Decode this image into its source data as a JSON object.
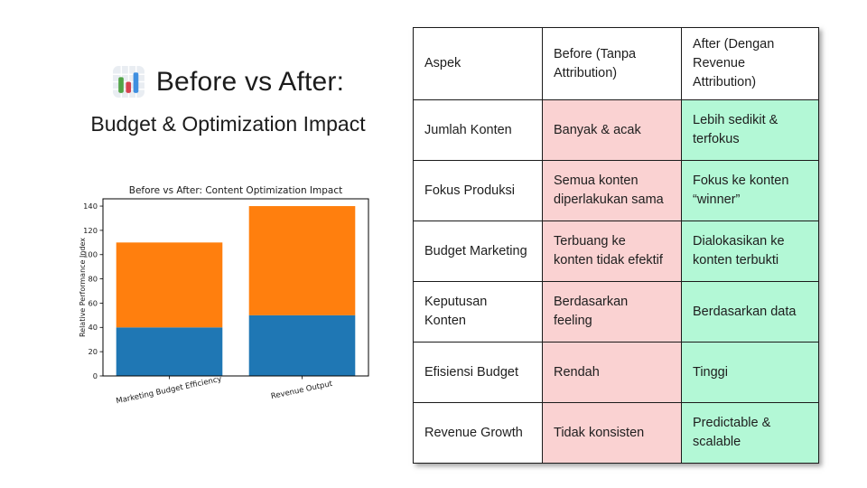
{
  "slide": {
    "title": "Before vs After:",
    "subtitle": "Budget & Optimization Impact",
    "title_icon": "bar-chart-emoji"
  },
  "chart_data": {
    "type": "bar",
    "stacked": true,
    "title": "Before vs After: Content Optimization Impact",
    "ylabel": "Relative Performance Index",
    "categories": [
      "Marketing Budget Efficiency",
      "Revenue Output"
    ],
    "series": [
      {
        "name": "blue-segment",
        "color": "#1f77b4",
        "values": [
          40,
          50
        ]
      },
      {
        "name": "orange-segment",
        "color": "#ff7f0e",
        "values": [
          70,
          90
        ]
      }
    ],
    "bar_totals": [
      110,
      140
    ],
    "yticks": [
      0,
      20,
      40,
      60,
      80,
      100,
      120,
      140
    ],
    "ylim": [
      0,
      146
    ],
    "grid": false,
    "legend": "none",
    "x_label_rotation": -12
  },
  "table": {
    "headers": [
      "Aspek",
      "Before (Tanpa\nAttribution)",
      "After (Dengan\nRevenue\nAttribution)"
    ],
    "rows": [
      {
        "aspek": "Jumlah Konten",
        "before": "Banyak & acak",
        "after": "Lebih sedikit &\nterfokus"
      },
      {
        "aspek": "Fokus Produksi",
        "before": "Semua konten\ndiperlakukan sama",
        "after": "Fokus ke konten\n“winner”"
      },
      {
        "aspek": "Budget Marketing",
        "before": "Terbuang ke\nkonten tidak efektif",
        "after": "Dialokasikan ke\nkonten terbukti"
      },
      {
        "aspek": "Keputusan\nKonten",
        "before": "Berdasarkan\nfeeling",
        "after": "Berdasarkan data"
      },
      {
        "aspek": "Efisiensi Budget",
        "before": "Rendah",
        "after": "Tinggi"
      },
      {
        "aspek": "Revenue Growth",
        "before": "Tidak konsisten",
        "after": "Predictable &\nscalable"
      }
    ],
    "colors": {
      "before_bg": "#FAD2D2",
      "after_bg": "#B3F8D6",
      "border": "#1b1b1b"
    }
  }
}
